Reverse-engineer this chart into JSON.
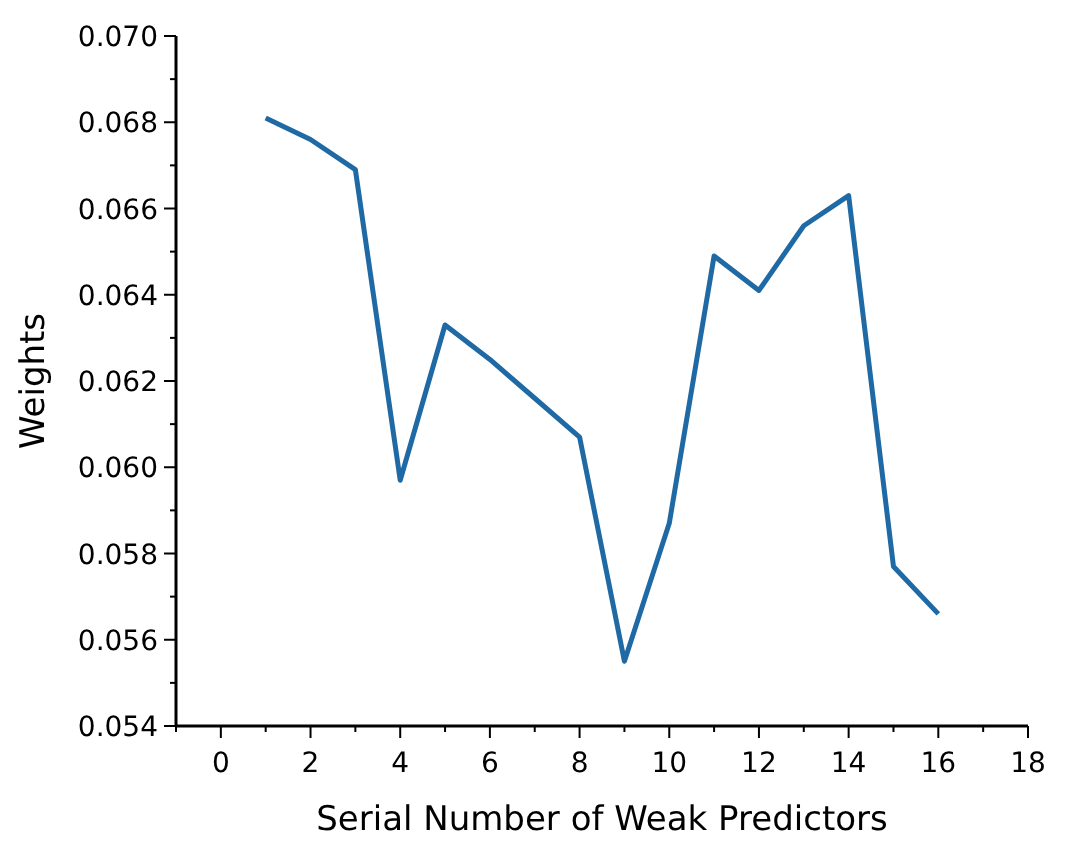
{
  "chart_data": {
    "type": "line",
    "xlabel": "Serial Number of Weak Predictors",
    "ylabel": "Weights",
    "x": [
      1,
      2,
      3,
      4,
      5,
      6,
      7,
      8,
      9,
      10,
      11,
      12,
      13,
      14,
      15,
      16
    ],
    "series": [
      {
        "color": "#1f6aa5",
        "values": [
          0.0681,
          0.0676,
          0.0669,
          0.0597,
          0.0633,
          0.0625,
          0.0616,
          0.0607,
          0.0555,
          0.0587,
          0.0649,
          0.0641,
          0.0656,
          0.0663,
          0.0577,
          0.0566
        ]
      }
    ],
    "xlim": [
      -1,
      18
    ],
    "xticks": [
      {
        "value": -1,
        "label": null
      },
      0,
      {
        "value": 1,
        "label": null
      },
      2,
      {
        "value": 3,
        "label": null
      },
      4,
      {
        "value": 5,
        "label": null
      },
      6,
      {
        "value": 7,
        "label": null
      },
      8,
      {
        "value": 9,
        "label": null
      },
      10,
      {
        "value": 11,
        "label": null
      },
      12,
      {
        "value": 13,
        "label": null
      },
      14,
      {
        "value": 15,
        "label": null
      },
      16,
      {
        "value": 17,
        "label": null
      },
      18
    ],
    "ylim": [
      0.054,
      0.07
    ],
    "yticks": [
      {
        "value": 0.054,
        "label": "0.054"
      },
      {
        "value": 0.055,
        "label": null
      },
      {
        "value": 0.056,
        "label": "0.056"
      },
      {
        "value": 0.057,
        "label": null
      },
      {
        "value": 0.058,
        "label": "0.058"
      },
      {
        "value": 0.059,
        "label": null
      },
      {
        "value": 0.06,
        "label": "0.060"
      },
      {
        "value": 0.061,
        "label": null
      },
      {
        "value": 0.062,
        "label": "0.062"
      },
      {
        "value": 0.063,
        "label": null
      },
      {
        "value": 0.064,
        "label": "0.064"
      },
      {
        "value": 0.065,
        "label": null
      },
      {
        "value": 0.066,
        "label": "0.066"
      },
      {
        "value": 0.067,
        "label": null
      },
      {
        "value": 0.068,
        "label": "0.068"
      },
      {
        "value": 0.069,
        "label": null
      },
      {
        "value": 0.07,
        "label": "0.070"
      }
    ],
    "grid": false,
    "marker": "none",
    "line_style": "solid"
  }
}
